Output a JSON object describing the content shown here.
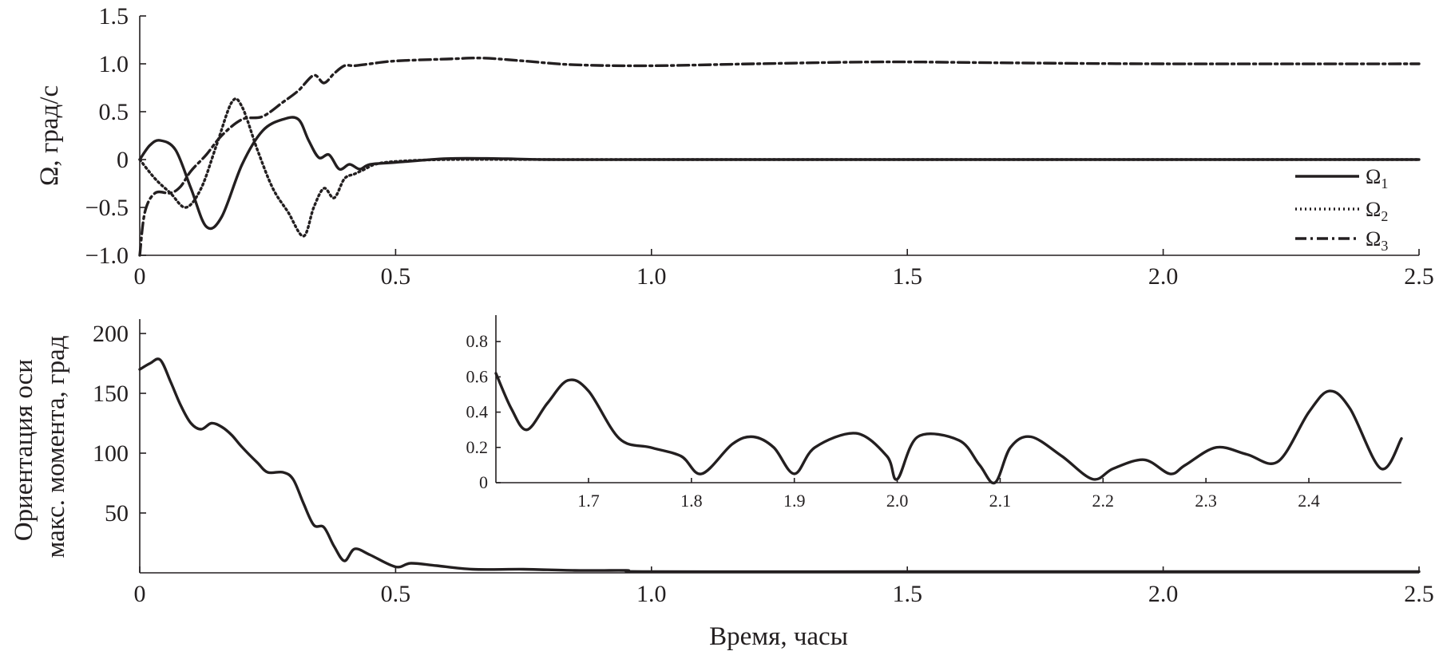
{
  "chart_data": [
    {
      "id": "angular-velocity",
      "type": "line",
      "ylabel": "Ω, град/с",
      "xlabel": "",
      "xlim": [
        0,
        2.5
      ],
      "ylim": [
        -1.0,
        1.5
      ],
      "xticks": [
        0,
        0.5,
        1.0,
        1.5,
        2.0,
        2.5
      ],
      "xtick_labels": [
        "0",
        "0.5",
        "1.0",
        "1.5",
        "2.0",
        "2.5"
      ],
      "yticks": [
        -1.0,
        -0.5,
        0,
        0.5,
        1.0,
        1.5
      ],
      "ytick_labels": [
        "−1.0",
        "−0.5",
        "0",
        "0.5",
        "1.0",
        "1.5"
      ],
      "grid": false,
      "legend_position": "bottom-right",
      "series": [
        {
          "name": "Ω1",
          "symbol": "Ω",
          "subscript": "1",
          "style": "solid",
          "x": [
            0,
            0.02,
            0.04,
            0.07,
            0.1,
            0.13,
            0.16,
            0.2,
            0.24,
            0.28,
            0.31,
            0.33,
            0.35,
            0.37,
            0.39,
            0.41,
            0.43,
            0.45,
            0.5,
            0.6,
            0.7,
            0.8,
            1.0,
            1.5,
            2.0,
            2.5
          ],
          "y": [
            0,
            0.15,
            0.2,
            0.1,
            -0.3,
            -0.7,
            -0.6,
            -0.05,
            0.3,
            0.42,
            0.42,
            0.2,
            0.02,
            0.05,
            -0.1,
            -0.05,
            -0.1,
            -0.05,
            -0.03,
            0.01,
            0.01,
            0,
            0,
            0,
            0,
            0
          ]
        },
        {
          "name": "Ω2",
          "symbol": "Ω",
          "subscript": "2",
          "style": "dotted",
          "x": [
            0,
            0.03,
            0.06,
            0.09,
            0.12,
            0.15,
            0.18,
            0.2,
            0.23,
            0.26,
            0.29,
            0.32,
            0.34,
            0.36,
            0.38,
            0.4,
            0.42,
            0.44,
            0.46,
            0.5,
            0.6,
            0.8,
            1.0,
            1.5,
            2.0,
            2.5
          ],
          "y": [
            0,
            -0.2,
            -0.35,
            -0.5,
            -0.3,
            0.15,
            0.6,
            0.55,
            0.1,
            -0.3,
            -0.55,
            -0.8,
            -0.5,
            -0.3,
            -0.4,
            -0.2,
            -0.15,
            -0.1,
            -0.05,
            -0.02,
            0,
            0,
            0,
            0,
            0,
            0
          ]
        },
        {
          "name": "Ω3",
          "symbol": "Ω",
          "subscript": "3",
          "style": "dash-dot",
          "x": [
            0,
            0.01,
            0.03,
            0.06,
            0.08,
            0.1,
            0.13,
            0.16,
            0.2,
            0.24,
            0.28,
            0.31,
            0.34,
            0.36,
            0.38,
            0.4,
            0.42,
            0.45,
            0.5,
            0.6,
            0.67,
            0.75,
            0.85,
            1.0,
            1.2,
            1.45,
            1.7,
            2.0,
            2.5
          ],
          "y": [
            -1.0,
            -0.55,
            -0.35,
            -0.35,
            -0.28,
            -0.12,
            0.05,
            0.25,
            0.42,
            0.45,
            0.6,
            0.72,
            0.88,
            0.8,
            0.9,
            0.98,
            0.98,
            1.0,
            1.03,
            1.05,
            1.06,
            1.03,
            0.99,
            0.98,
            1.0,
            1.02,
            1.01,
            1.0,
            1.0
          ]
        }
      ]
    },
    {
      "id": "axis-orientation",
      "type": "line",
      "ylabel": [
        "Ориентация оси",
        "макс. момента, град"
      ],
      "xlabel": "Время, часы",
      "xlim": [
        0,
        2.5
      ],
      "ylim": [
        0,
        200
      ],
      "xticks": [
        0,
        0.5,
        1.0,
        1.5,
        2.0,
        2.5
      ],
      "xtick_labels": [
        "0",
        "0.5",
        "1.0",
        "1.5",
        "2.0",
        "2.5"
      ],
      "yticks": [
        50,
        100,
        150,
        200
      ],
      "ytick_labels": [
        "50",
        "100",
        "150",
        "200"
      ],
      "grid": false,
      "series": [
        {
          "style": "solid",
          "x": [
            0,
            0.02,
            0.04,
            0.06,
            0.08,
            0.1,
            0.12,
            0.14,
            0.16,
            0.18,
            0.2,
            0.23,
            0.25,
            0.28,
            0.3,
            0.32,
            0.34,
            0.36,
            0.38,
            0.4,
            0.42,
            0.45,
            0.5,
            0.53,
            0.58,
            0.65,
            0.75,
            0.85,
            0.95,
            1.0,
            1.5,
            2.0,
            2.5
          ],
          "y": [
            170,
            175,
            178,
            160,
            140,
            125,
            120,
            125,
            122,
            115,
            105,
            92,
            84,
            84,
            78,
            58,
            40,
            38,
            22,
            10,
            20,
            15,
            5,
            8,
            6,
            3,
            3,
            2,
            2,
            1,
            1,
            1,
            1
          ]
        }
      ]
    },
    {
      "id": "axis-orientation-inset",
      "type": "line",
      "xlim": [
        1.61,
        2.49
      ],
      "ylim": [
        0,
        0.95
      ],
      "xticks": [
        1.7,
        1.8,
        1.9,
        2.0,
        2.1,
        2.2,
        2.3,
        2.4
      ],
      "xtick_labels": [
        "1.7",
        "1.8",
        "1.9",
        "2.0",
        "2.1",
        "2.2",
        "2.3",
        "2.4"
      ],
      "yticks": [
        0,
        0.2,
        0.4,
        0.6,
        0.8
      ],
      "ytick_labels": [
        "0",
        "0.2",
        "0.4",
        "0.6",
        "0.8"
      ],
      "grid": false,
      "series": [
        {
          "style": "solid",
          "x": [
            1.61,
            1.625,
            1.64,
            1.66,
            1.68,
            1.7,
            1.73,
            1.76,
            1.79,
            1.81,
            1.84,
            1.86,
            1.88,
            1.9,
            1.92,
            1.96,
            1.99,
            2.0,
            2.02,
            2.06,
            2.08,
            2.095,
            2.11,
            2.13,
            2.16,
            2.19,
            2.21,
            2.24,
            2.265,
            2.28,
            2.31,
            2.34,
            2.37,
            2.4,
            2.42,
            2.44,
            2.47,
            2.49
          ],
          "y": [
            0.62,
            0.42,
            0.3,
            0.45,
            0.58,
            0.52,
            0.25,
            0.2,
            0.15,
            0.05,
            0.22,
            0.26,
            0.2,
            0.05,
            0.2,
            0.28,
            0.15,
            0.02,
            0.26,
            0.24,
            0.1,
            0.0,
            0.2,
            0.26,
            0.15,
            0.02,
            0.08,
            0.13,
            0.05,
            0.1,
            0.2,
            0.16,
            0.12,
            0.4,
            0.52,
            0.42,
            0.08,
            0.25
          ]
        }
      ]
    }
  ]
}
